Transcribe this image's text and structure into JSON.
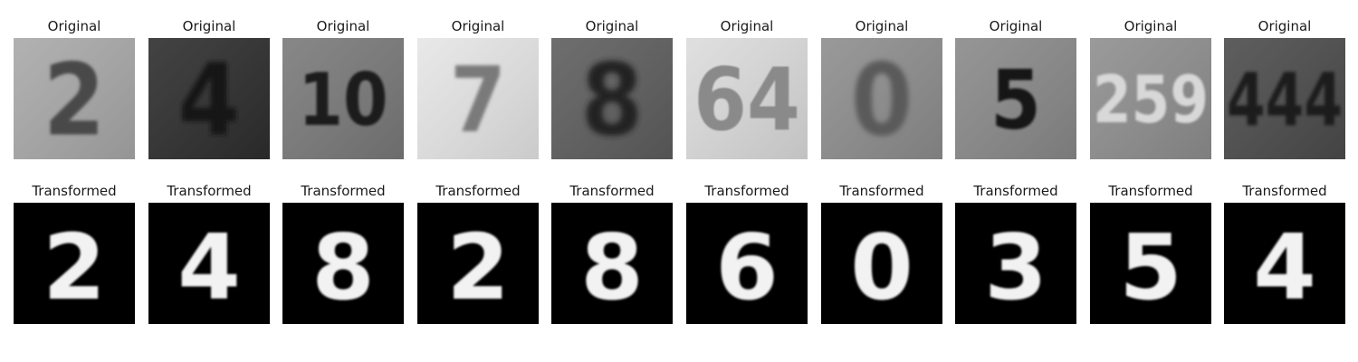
{
  "figure": {
    "columns": [
      {
        "original_label": "Original",
        "transformed_label": "Transformed",
        "original_digits": "2",
        "original_tone": "#a9a9a9",
        "original_ink": "#4a4a4a",
        "transformed_digit": "2"
      },
      {
        "original_label": "Original",
        "transformed_label": "Transformed",
        "original_digits": "4",
        "original_tone": "#2e2e2e",
        "original_ink": "#151515",
        "transformed_digit": "4"
      },
      {
        "original_label": "Original",
        "transformed_label": "Transformed",
        "original_digits": "10",
        "original_tone": "#7a7a7a",
        "original_ink": "#1e1e1e",
        "transformed_digit": "8"
      },
      {
        "original_label": "Original",
        "transformed_label": "Transformed",
        "original_digits": "7",
        "original_tone": "#e6e6e6",
        "original_ink": "#7a7a7a",
        "transformed_digit": "2"
      },
      {
        "original_label": "Original",
        "transformed_label": "Transformed",
        "original_digits": "8",
        "original_tone": "#5e5e5e",
        "original_ink": "#202020",
        "transformed_digit": "8"
      },
      {
        "original_label": "Original",
        "transformed_label": "Transformed",
        "original_digits": "64",
        "original_tone": "#dcdcdc",
        "original_ink": "#8a8a8a",
        "transformed_digit": "6"
      },
      {
        "original_label": "Original",
        "transformed_label": "Transformed",
        "original_digits": "0",
        "original_tone": "#8e8e8e",
        "original_ink": "#5a5a5a",
        "transformed_digit": "0"
      },
      {
        "original_label": "Original",
        "transformed_label": "Transformed",
        "original_digits": "5",
        "original_tone": "#8a8a8a",
        "original_ink": "#161616",
        "transformed_digit": "3"
      },
      {
        "original_label": "Original",
        "transformed_label": "Transformed",
        "original_digits": "259",
        "original_tone": "#8f8f8f",
        "original_ink": "#d8d8d8",
        "transformed_digit": "5"
      },
      {
        "original_label": "Original",
        "transformed_label": "Transformed",
        "original_digits": "444",
        "original_tone": "#4c4c4c",
        "original_ink": "#1e1e1e",
        "transformed_digit": "4"
      }
    ],
    "transformed_background": "#000000",
    "transformed_ink": "#f2f2f2"
  }
}
